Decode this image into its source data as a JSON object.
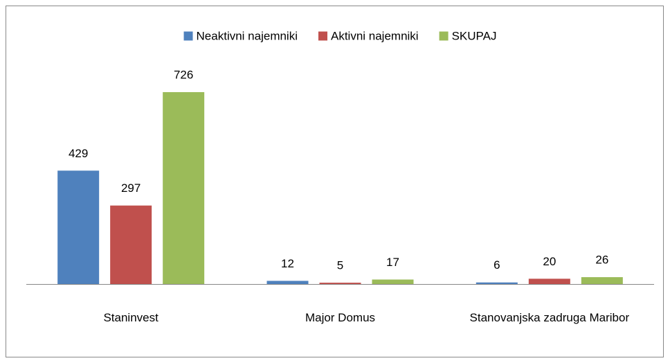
{
  "chart_data": {
    "type": "bar",
    "categories": [
      "Staninvest",
      "Major Domus",
      "Stanovanjska zadruga Maribor"
    ],
    "series": [
      {
        "name": "Neaktivni najemniki",
        "color": "#4f81bd",
        "values": [
          429,
          12,
          6
        ]
      },
      {
        "name": "Aktivni najemniki",
        "color": "#c0504d",
        "values": [
          297,
          5,
          20
        ]
      },
      {
        "name": "SKUPAJ",
        "color": "#9bbb59",
        "values": [
          726,
          17,
          26
        ]
      }
    ],
    "legend": "top"
  }
}
